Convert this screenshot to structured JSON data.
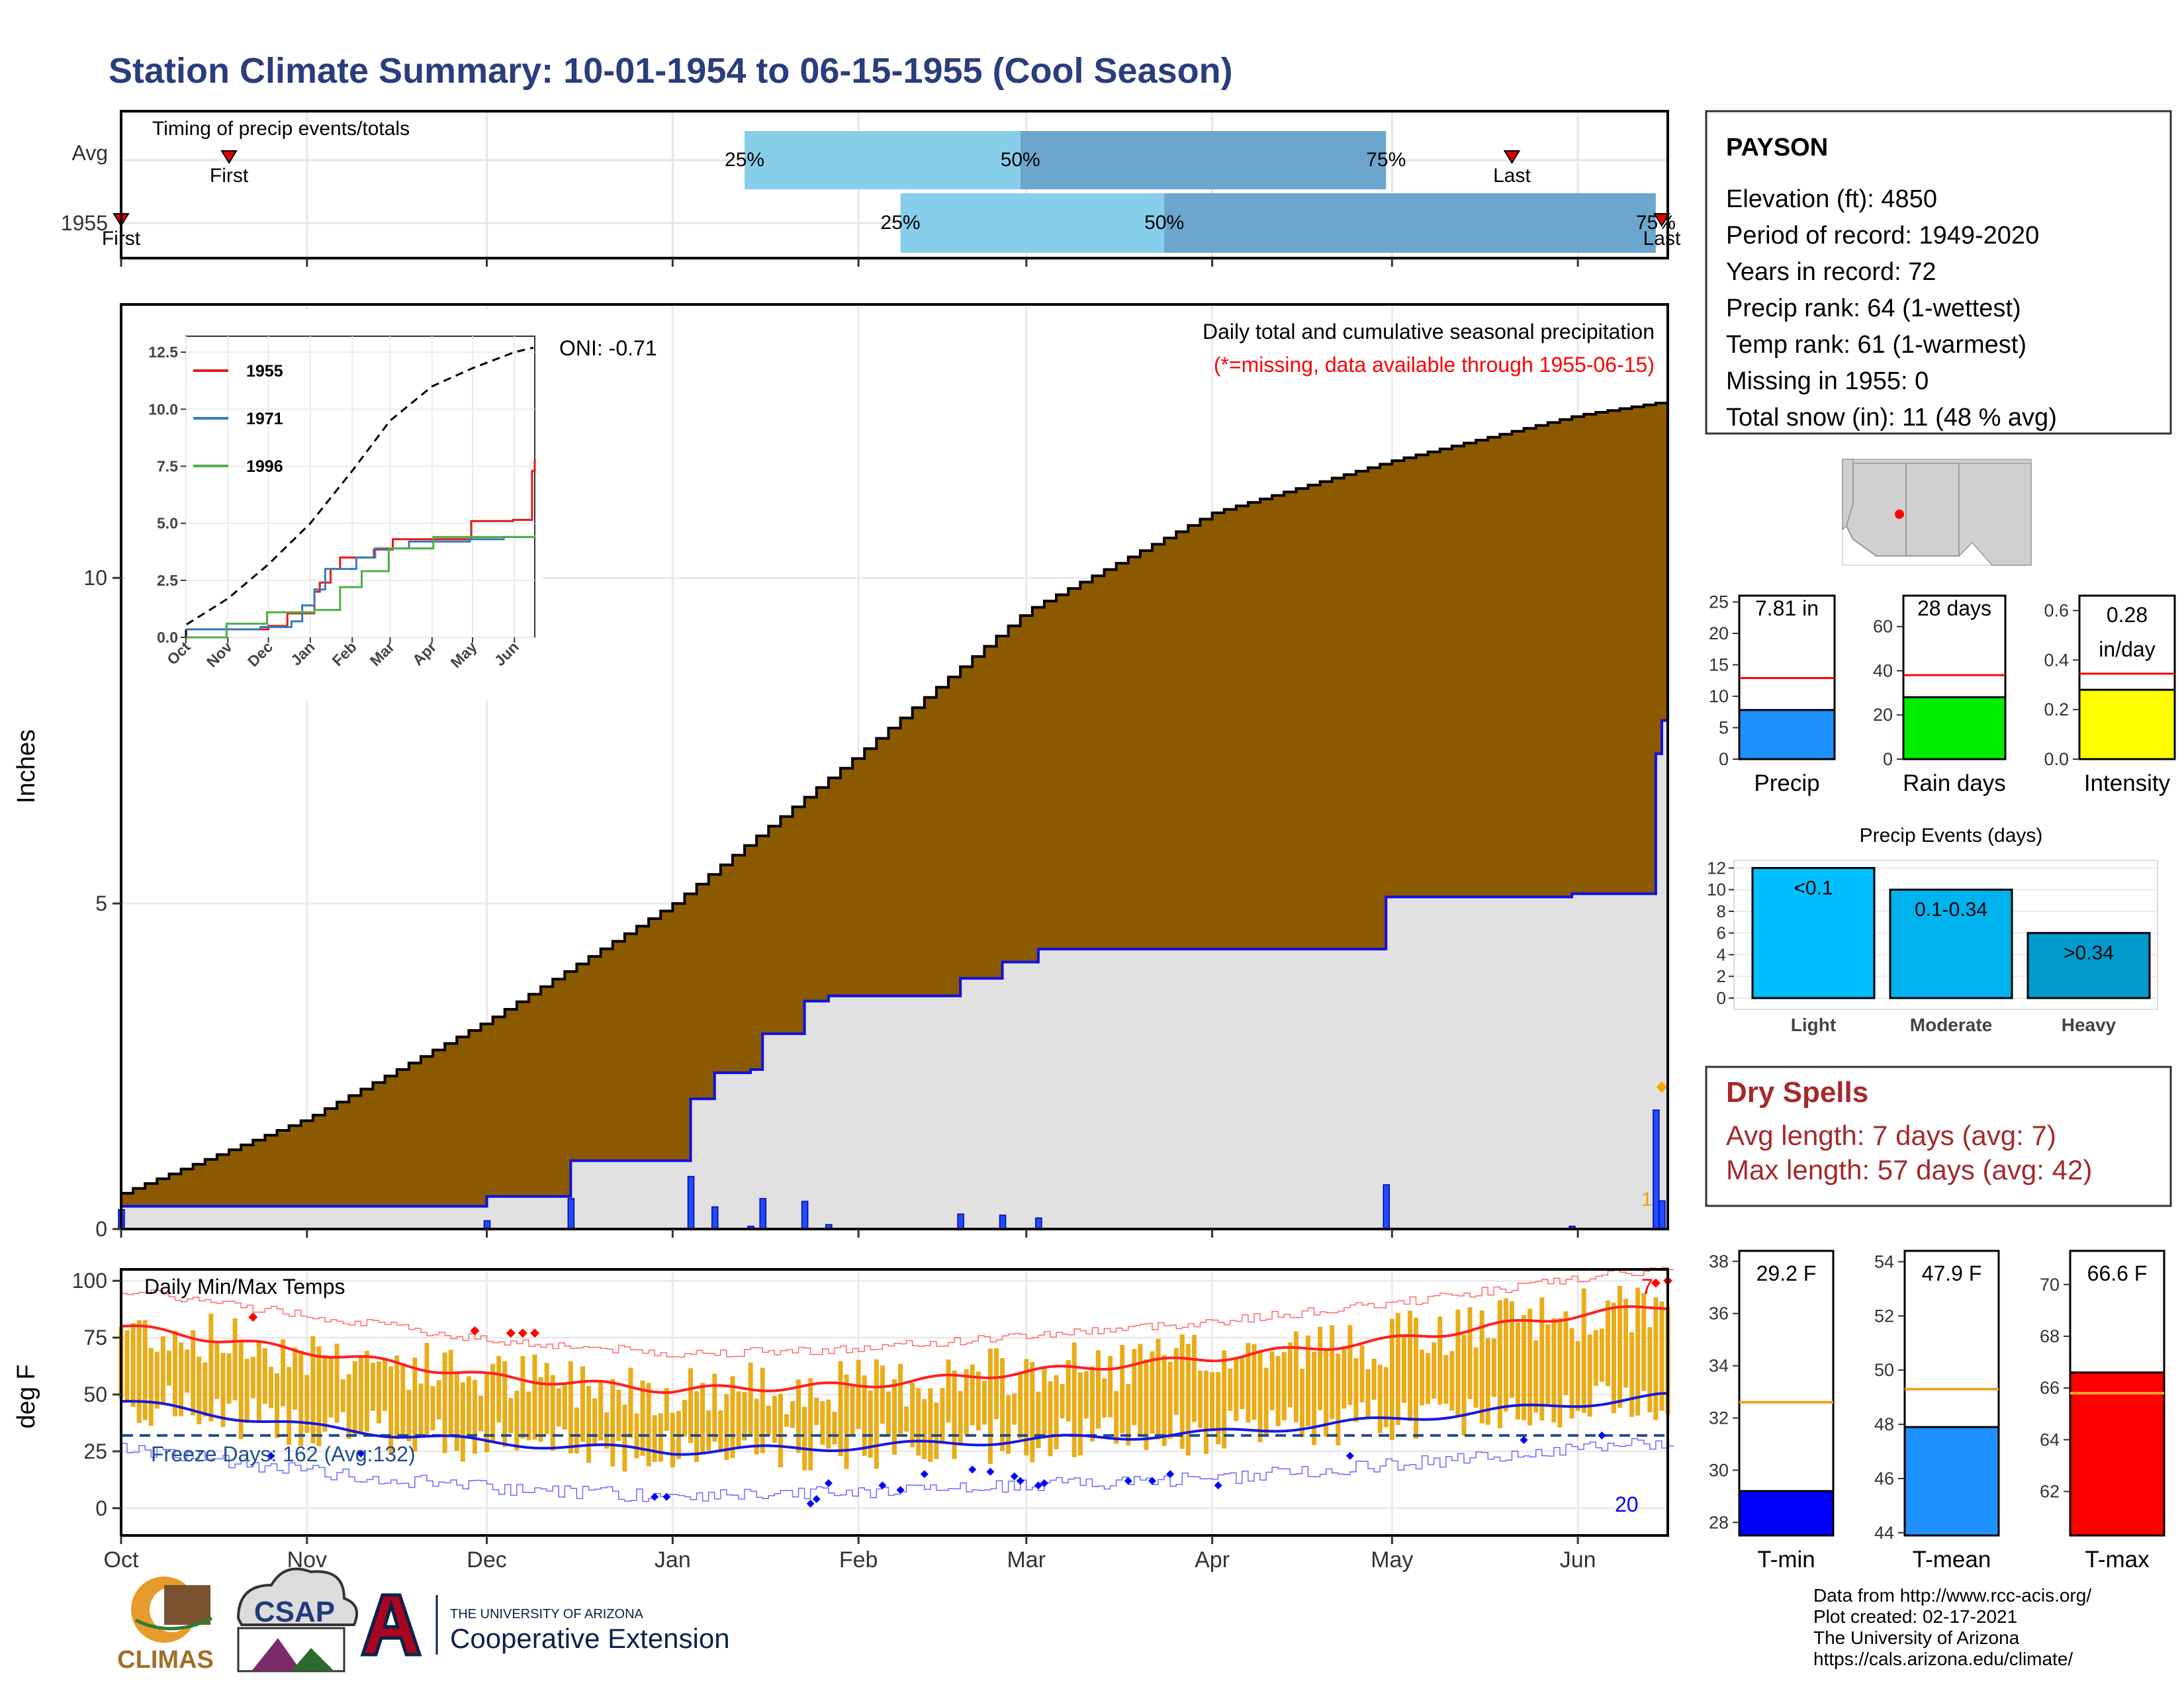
{
  "title": "Station Climate Summary: 10-01-1954 to 06-15-1955 (Cool Season)",
  "colors": {
    "title": "#2a3d7c",
    "precip_fill": "#8b5a00",
    "avg_fill": "#e1e1e1",
    "cum_line": "#1010e0",
    "bar_light": "#87ceeb",
    "bar_dark": "#6ca6cd",
    "temp_bar": "#e8a400",
    "tmax_line": "#ff2020",
    "tmin_line": "#1818e0",
    "freeze_line": "#1f4e8c",
    "dry_spell": "#a52a2a",
    "marker": "#e00000"
  },
  "timing_panel": {
    "title": "Timing of precip events/totals",
    "rows": [
      {
        "label": "Avg",
        "first_label": "First",
        "last_label": "Last",
        "first": "Oct 19",
        "last": "May 21",
        "p25_label": "25%",
        "p50_label": "50%",
        "p75_label": "75%",
        "p25": "Jan 13",
        "p50": "Feb 28",
        "p75": "Apr 30"
      },
      {
        "label": "1955",
        "first_label": "First",
        "last_label": "Last",
        "first": "Oct 1",
        "last": "Jun 15",
        "p25_label": "25%",
        "p50_label": "50%",
        "p75_label": "75%",
        "p25": "Feb 8",
        "p50": "Mar 24",
        "p75": "Jun 14"
      }
    ]
  },
  "precip_panel": {
    "ylabel": "Inches",
    "yticks": [
      "0",
      "5",
      "10"
    ],
    "oni_label": "ONI: -0.71",
    "caption": "Daily total and cumulative seasonal precipitation",
    "missing_note": "(*=missing, data available through 1955-06-15)",
    "corner_value": "1"
  },
  "inset": {
    "yticks": [
      "0.0",
      "2.5",
      "5.0",
      "7.5",
      "10.0",
      "12.5"
    ],
    "xticks": [
      "Oct",
      "Nov",
      "Dec",
      "Jan",
      "Feb",
      "Mar",
      "Apr",
      "May",
      "Jun"
    ],
    "legend": [
      {
        "name": "1955",
        "color": "#e41a1c"
      },
      {
        "name": "1971",
        "color": "#377eb8"
      },
      {
        "name": "1996",
        "color": "#4daf4a"
      }
    ]
  },
  "temp_panel": {
    "title": "Daily Min/Max Temps",
    "ylabel": "deg F",
    "yticks": [
      "0",
      "25",
      "50",
      "75",
      "100"
    ],
    "freeze_label": "Freeze Days: 162 (Avg:132)",
    "record_high_count": "7",
    "record_low_count": "20"
  },
  "months": [
    "Oct",
    "Nov",
    "Dec",
    "Jan",
    "Feb",
    "Mar",
    "Apr",
    "May",
    "Jun"
  ],
  "station": {
    "name": "PAYSON",
    "lines": [
      "Elevation (ft): 4850",
      "Period of record: 1949-2020",
      "Years in record: 72",
      "Precip rank: 64 (1-wettest)",
      "Temp rank: 61 (1-warmest)",
      "Missing in 1955: 0",
      "Total snow (in): 11 (48 % avg)"
    ]
  },
  "summary_bars": [
    {
      "label": "Precip",
      "value_label": "7.81 in",
      "value": 7.81,
      "avg": 12.9,
      "max": 26,
      "ticks": [
        "0",
        "5",
        "10",
        "15",
        "20",
        "25"
      ],
      "color": "#1e90ff"
    },
    {
      "label": "Rain days",
      "value_label": "28 days",
      "value": 28,
      "avg": 38,
      "max": 74,
      "ticks": [
        "0",
        "20",
        "40",
        "60"
      ],
      "color": "#00ee00"
    },
    {
      "label": "Intensity",
      "value_label": "0.28 in/day",
      "value_line1": "0.28",
      "value_line2": "in/day",
      "value": 0.28,
      "avg": 0.345,
      "max": 0.66,
      "ticks": [
        "0.0",
        "0.2",
        "0.4",
        "0.6"
      ],
      "color": "#ffff00"
    }
  ],
  "precip_events": {
    "title": "Precip Events (days)",
    "yticks": [
      "0",
      "2",
      "4",
      "6",
      "8",
      "10",
      "12"
    ],
    "bars": [
      {
        "category": "Light",
        "label": "<0.1",
        "value": 12,
        "color": "#00bfff"
      },
      {
        "category": "Moderate",
        "label": "0.1-0.34",
        "value": 10,
        "color": "#00b2ee"
      },
      {
        "category": "Heavy",
        "label": ">0.34",
        "value": 6,
        "color": "#009acd"
      }
    ]
  },
  "dry_spells": {
    "title": "Dry Spells",
    "avg_line": "Avg length: 7 days (avg: 7)",
    "max_line": "Max length: 57 days (avg: 42)"
  },
  "temp_bars": [
    {
      "label": "T-min",
      "value_label": "29.2 F",
      "value": 29.2,
      "avg": 32.6,
      "min": 27.5,
      "max": 38.4,
      "ticks": [
        "28",
        "30",
        "32",
        "34",
        "36",
        "38"
      ],
      "color": "#0000ff"
    },
    {
      "label": "T-mean",
      "value_label": "47.9 F",
      "value": 47.9,
      "avg": 49.3,
      "min": 43.9,
      "max": 54.4,
      "ticks": [
        "44",
        "46",
        "48",
        "50",
        "52",
        "54"
      ],
      "color": "#1e90ff"
    },
    {
      "label": "T-max",
      "value_label": "66.6 F",
      "value": 66.6,
      "avg": 65.8,
      "min": 60.3,
      "max": 71.3,
      "ticks": [
        "62",
        "64",
        "66",
        "68",
        "70"
      ],
      "color": "#ff0000"
    }
  ],
  "footer": {
    "lines": [
      "Data from http://www.rcc-acis.org/",
      "Plot created: 02-17-2021",
      "The University of Arizona",
      "https://cals.arizona.edu/climate/"
    ],
    "logo_climas": "CLIMAS",
    "logo_csap": "CSAP",
    "logo_ua_small": "THE UNIVERSITY OF ARIZONA",
    "logo_ua_big": "Cooperative Extension"
  },
  "chart_data": [
    {
      "type": "area",
      "title": "Daily total and cumulative seasonal precipitation",
      "ylabel": "Inches",
      "ylim": [
        0,
        14
      ],
      "x": [
        "Oct 1",
        "Nov 1",
        "Dec 1",
        "Jan 1",
        "Feb 1",
        "Mar 1",
        "Apr 1",
        "May 1",
        "Jun 1",
        "Jun 15"
      ],
      "series": [
        {
          "name": "Average cumulative",
          "values": [
            0.55,
            1.7,
            3.2,
            5.0,
            7.3,
            9.5,
            11.0,
            11.8,
            12.5,
            12.7
          ]
        },
        {
          "name": "1955 cumulative",
          "values": [
            0.35,
            0.35,
            0.5,
            1.05,
            3.5,
            4.3,
            4.3,
            5.1,
            5.15,
            7.81
          ]
        }
      ]
    },
    {
      "type": "line",
      "title": "Daily Min/Max Temps",
      "ylabel": "deg F",
      "ylim": [
        -10,
        105
      ],
      "x": [
        "Oct 1",
        "Nov 1",
        "Dec 1",
        "Jan 1",
        "Feb 1",
        "Mar 1",
        "Apr 1",
        "May 1",
        "Jun 1",
        "Jun 15"
      ],
      "series": [
        {
          "name": "Avg max",
          "values": [
            80,
            69,
            58,
            52,
            54,
            60,
            66,
            74,
            85,
            89
          ]
        },
        {
          "name": "Avg min",
          "values": [
            47,
            36,
            29,
            25,
            27,
            30,
            33,
            39,
            46,
            49
          ]
        }
      ],
      "freeze_threshold": 32
    }
  ]
}
